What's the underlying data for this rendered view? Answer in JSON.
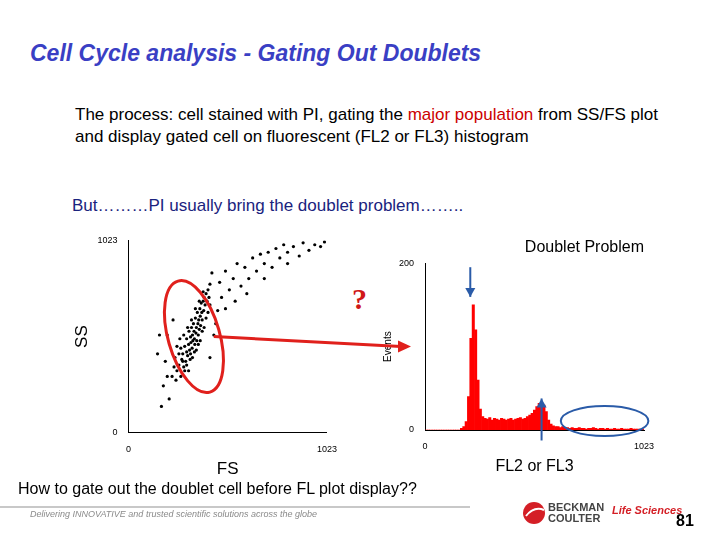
{
  "slide": {
    "title": "Cell Cycle analysis - Gating Out Doublets",
    "intro_parts": [
      "The process: cell stained with PI, gating the ",
      "major population",
      " from SS/FS plot and display gated cell on fluorescent (FL2 or FL3) histogram"
    ],
    "problem": "But………PI usually bring the doublet problem……..",
    "gate_question": "?",
    "question": "How to gate out the doublet cell before FL plot display??",
    "footer": "Delivering INNOVATIVE and trusted scientific solutions across the globe",
    "logo_lines": [
      "BECKMAN",
      "COULTER"
    ],
    "logo_tagline": "Life Sciences",
    "page_number": "81"
  },
  "chart_data": [
    {
      "type": "scatter",
      "x_label": "FS",
      "y_label": "SS",
      "color": "#000000",
      "marker": "dot",
      "grid": false,
      "xlim": [
        0,
        1023
      ],
      "xticks": [
        0,
        1023
      ],
      "ylim": [
        0,
        1023
      ],
      "yticks": [
        0,
        1023
      ],
      "x": [
        250,
        260,
        270,
        275,
        280,
        285,
        290,
        295,
        300,
        300,
        305,
        310,
        312,
        315,
        318,
        320,
        322,
        325,
        328,
        330,
        332,
        335,
        338,
        340,
        342,
        345,
        348,
        350,
        352,
        355,
        358,
        360,
        362,
        365,
        368,
        370,
        372,
        375,
        378,
        380,
        385,
        388,
        390,
        395,
        400,
        405,
        410,
        415,
        420,
        260,
        270,
        280,
        290,
        300,
        310,
        320,
        330,
        340,
        350,
        360,
        370,
        380,
        390,
        400,
        410,
        420,
        240,
        250,
        265,
        285,
        305,
        325,
        345,
        365,
        385,
        225,
        235,
        245,
        180,
        200,
        210,
        230,
        440,
        460,
        190,
        470,
        480,
        200,
        500,
        520,
        540,
        560,
        580,
        600,
        620,
        640,
        660,
        680,
        700,
        720,
        740,
        760,
        780,
        800,
        820,
        850,
        880,
        900,
        930,
        960,
        990,
        1010,
        450,
        430,
        500,
        550,
        150,
        160,
        610,
        700,
        820,
        170,
        420
      ],
      "values": [
        330,
        360,
        300,
        390,
        420,
        350,
        460,
        380,
        430,
        500,
        410,
        470,
        540,
        440,
        390,
        510,
        480,
        560,
        450,
        520,
        490,
        580,
        540,
        500,
        470,
        610,
        530,
        560,
        490,
        640,
        580,
        520,
        600,
        550,
        660,
        620,
        570,
        690,
        640,
        600,
        700,
        650,
        720,
        680,
        740,
        700,
        760,
        720,
        790,
        420,
        450,
        380,
        330,
        360,
        330,
        420,
        400,
        430,
        440,
        470,
        490,
        540,
        560,
        610,
        640,
        680,
        400,
        460,
        500,
        520,
        560,
        600,
        660,
        700,
        750,
        300,
        350,
        280,
        250,
        520,
        180,
        600,
        520,
        650,
        380,
        800,
        720,
        300,
        860,
        760,
        820,
        900,
        780,
        880,
        820,
        930,
        860,
        950,
        900,
        960,
        880,
        980,
        930,
        1000,
        960,
        990,
        940,
        1010,
        970,
        1000,
        990,
        1015,
        580,
        850,
        660,
        700,
        420,
        520,
        740,
        820,
        900,
        140,
        400
      ]
    },
    {
      "type": "histogram",
      "title": "Doublet Problem",
      "x_label": "FL2 or FL3",
      "y_label": "Events",
      "color": "#ff0000",
      "grid": false,
      "xlim": [
        0,
        1023
      ],
      "xticks": [
        0,
        1023
      ],
      "ylim": [
        0,
        200
      ],
      "yticks": [
        0,
        200
      ],
      "bins": [
        0,
        11,
        22,
        33,
        44,
        55,
        66,
        77,
        88,
        99,
        110,
        121,
        132,
        143,
        154,
        165,
        176,
        187,
        198,
        209,
        220,
        231,
        242,
        253,
        264,
        275,
        286,
        297,
        308,
        319,
        330,
        341,
        352,
        363,
        374,
        385,
        396,
        407,
        418,
        429,
        440,
        451,
        462,
        473,
        484,
        495,
        506,
        517,
        528,
        539,
        550,
        561,
        572,
        583,
        594,
        605,
        616,
        627,
        638,
        649,
        660,
        671,
        682,
        693,
        704,
        715,
        726,
        737,
        748,
        759,
        770,
        781,
        792,
        803,
        814,
        825,
        836,
        847,
        858,
        869,
        880,
        891,
        902,
        913,
        924,
        935,
        946,
        957,
        968,
        979,
        990,
        1001,
        1012,
        1023
      ],
      "values": [
        0,
        0,
        0,
        0,
        0,
        0,
        0,
        0,
        0,
        0,
        0,
        0,
        0,
        0,
        0,
        2,
        4,
        10,
        40,
        110,
        150,
        120,
        60,
        25,
        16,
        14,
        13,
        15,
        12,
        14,
        13,
        12,
        14,
        13,
        12,
        13,
        14,
        12,
        13,
        14,
        15,
        13,
        14,
        16,
        18,
        20,
        24,
        28,
        32,
        33,
        30,
        22,
        12,
        7,
        5,
        4,
        4,
        3,
        4,
        3,
        3,
        2,
        3,
        2,
        2,
        3,
        2,
        2,
        1,
        2,
        2,
        3,
        2,
        1,
        2,
        2,
        1,
        2,
        1,
        1,
        2,
        1,
        1,
        2,
        1,
        1,
        1,
        2,
        1,
        1,
        1,
        1,
        1
      ]
    }
  ]
}
